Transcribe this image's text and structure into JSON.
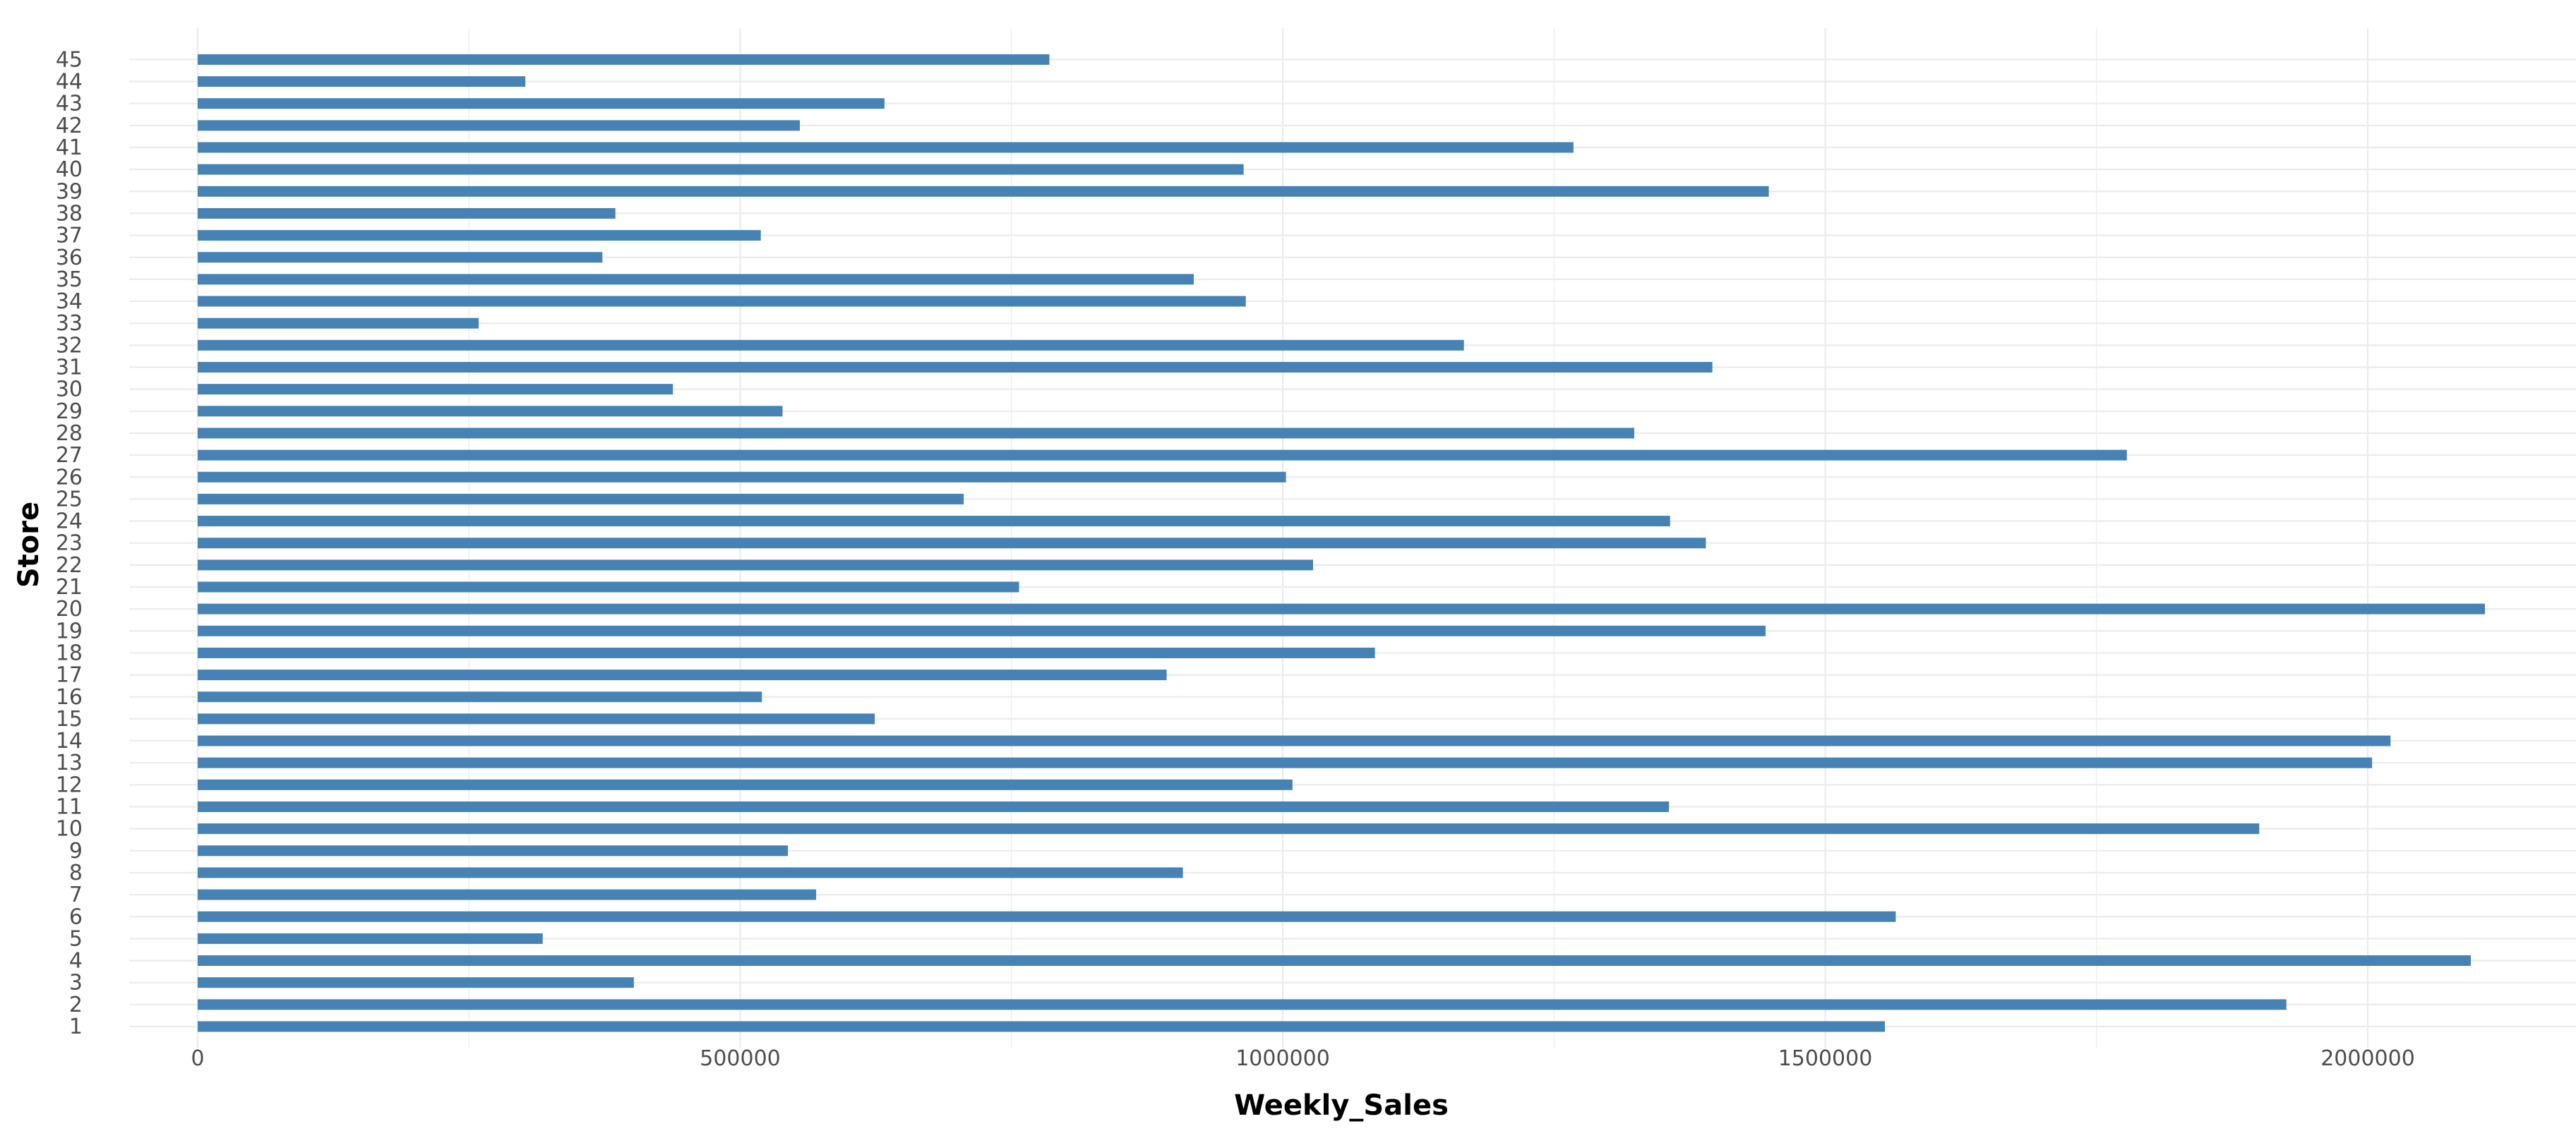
{
  "chart_data": {
    "type": "bar",
    "orientation": "horizontal",
    "title": "",
    "xlabel": "Weekly_Sales",
    "ylabel": "Store",
    "xlim": [
      -150000,
      2160000
    ],
    "x_ticks": [
      0,
      500000,
      1000000,
      1500000,
      2000000
    ],
    "x_tick_labels": [
      "0",
      "500000",
      "1000000",
      "1500000",
      "2000000"
    ],
    "grid": true,
    "legend": "none",
    "bar_color": "#4682B4",
    "grid_color": "#EBEBEB",
    "categories": [
      "1",
      "2",
      "3",
      "4",
      "5",
      "6",
      "7",
      "8",
      "9",
      "10",
      "11",
      "12",
      "13",
      "14",
      "15",
      "16",
      "17",
      "18",
      "19",
      "20",
      "21",
      "22",
      "23",
      "24",
      "25",
      "26",
      "27",
      "28",
      "29",
      "30",
      "31",
      "32",
      "33",
      "34",
      "35",
      "36",
      "37",
      "38",
      "39",
      "40",
      "41",
      "42",
      "43",
      "44",
      "45"
    ],
    "values": [
      1555000,
      1925000,
      402000,
      2095000,
      318000,
      1565000,
      570000,
      908000,
      544000,
      1900000,
      1356000,
      1009000,
      2004000,
      2021000,
      624000,
      520000,
      893000,
      1085000,
      1445000,
      2108000,
      757000,
      1028000,
      1390000,
      1357000,
      706000,
      1003000,
      1778000,
      1324000,
      539000,
      438000,
      1396000,
      1167000,
      259000,
      966000,
      918000,
      373000,
      519000,
      385000,
      1448000,
      964000,
      1268000,
      555000,
      633000,
      302000,
      785000
    ]
  }
}
